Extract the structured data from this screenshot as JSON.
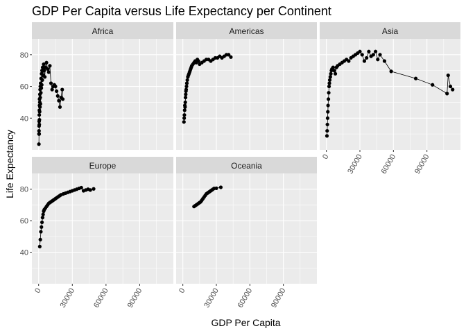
{
  "chart_data": {
    "type": "line",
    "title": "GDP Per Capita versus Life Expectancy per Continent",
    "xlabel": "GDP Per Capita",
    "ylabel": "Life Expectancy",
    "xlim": [
      -6000,
      120000
    ],
    "ylim": [
      20,
      90
    ],
    "x_ticks": [
      0,
      30000,
      60000,
      90000
    ],
    "x_tick_labels": [
      "0",
      "30000",
      "60000",
      "90000"
    ],
    "y_ticks": [
      40,
      60,
      80
    ],
    "y_tick_labels": [
      "40",
      "60",
      "80"
    ],
    "grid": true,
    "markers": "points",
    "panels": [
      {
        "name": "Africa",
        "points": [
          [
            241,
            23.6
          ],
          [
            300,
            30
          ],
          [
            350,
            32
          ],
          [
            400,
            35
          ],
          [
            450,
            38
          ],
          [
            500,
            30
          ],
          [
            550,
            42
          ],
          [
            600,
            36
          ],
          [
            650,
            45
          ],
          [
            700,
            39
          ],
          [
            750,
            48
          ],
          [
            800,
            52
          ],
          [
            900,
            44
          ],
          [
            1000,
            50
          ],
          [
            1100,
            55
          ],
          [
            1200,
            47
          ],
          [
            1300,
            58
          ],
          [
            1400,
            53
          ],
          [
            1500,
            60
          ],
          [
            1600,
            49
          ],
          [
            1800,
            62
          ],
          [
            2000,
            56
          ],
          [
            2200,
            65
          ],
          [
            2400,
            59
          ],
          [
            2600,
            68
          ],
          [
            2800,
            61
          ],
          [
            3000,
            70
          ],
          [
            3300,
            64
          ],
          [
            3600,
            72
          ],
          [
            4000,
            67
          ],
          [
            4500,
            74
          ],
          [
            5000,
            70
          ],
          [
            5500,
            66
          ],
          [
            6000,
            72
          ],
          [
            7000,
            75
          ],
          [
            8000,
            71
          ],
          [
            9000,
            69
          ],
          [
            10000,
            73
          ],
          [
            11000,
            62
          ],
          [
            12000,
            58
          ],
          [
            13000,
            60
          ],
          [
            14000,
            61
          ],
          [
            15000,
            60
          ],
          [
            16000,
            57
          ],
          [
            17000,
            54
          ],
          [
            18000,
            51
          ],
          [
            19000,
            47
          ],
          [
            20000,
            53
          ],
          [
            21000,
            58
          ],
          [
            21500,
            52
          ]
        ]
      },
      {
        "name": "Americas",
        "points": [
          [
            1000,
            37.6
          ],
          [
            1200,
            40
          ],
          [
            1400,
            42
          ],
          [
            1600,
            45
          ],
          [
            1800,
            48
          ],
          [
            2000,
            47
          ],
          [
            2200,
            50
          ],
          [
            2400,
            53
          ],
          [
            2600,
            55
          ],
          [
            2800,
            57
          ],
          [
            3000,
            58
          ],
          [
            3300,
            60
          ],
          [
            3600,
            62
          ],
          [
            4000,
            64
          ],
          [
            4500,
            66
          ],
          [
            5000,
            67
          ],
          [
            5500,
            68
          ],
          [
            6000,
            69
          ],
          [
            6500,
            70
          ],
          [
            7000,
            71
          ],
          [
            7500,
            72
          ],
          [
            8000,
            73
          ],
          [
            9000,
            74
          ],
          [
            10000,
            75
          ],
          [
            11000,
            76
          ],
          [
            12000,
            75
          ],
          [
            13000,
            77
          ],
          [
            14000,
            76
          ],
          [
            15000,
            74
          ],
          [
            17000,
            75
          ],
          [
            19000,
            76
          ],
          [
            21000,
            77
          ],
          [
            23000,
            77
          ],
          [
            25000,
            76
          ],
          [
            27000,
            77
          ],
          [
            29000,
            78
          ],
          [
            31000,
            78
          ],
          [
            33000,
            79
          ],
          [
            35000,
            78
          ],
          [
            37000,
            79
          ],
          [
            39000,
            80
          ],
          [
            41000,
            80
          ],
          [
            43000,
            78.5
          ]
        ]
      },
      {
        "name": "Asia",
        "points": [
          [
            500,
            28.8
          ],
          [
            700,
            32
          ],
          [
            900,
            36
          ],
          [
            1100,
            40
          ],
          [
            1300,
            44
          ],
          [
            1500,
            48
          ],
          [
            1800,
            52
          ],
          [
            2100,
            56
          ],
          [
            2400,
            60
          ],
          [
            2700,
            62
          ],
          [
            3000,
            64
          ],
          [
            3500,
            66
          ],
          [
            4000,
            68
          ],
          [
            4500,
            70
          ],
          [
            5000,
            71
          ],
          [
            6000,
            72
          ],
          [
            7000,
            70
          ],
          [
            8000,
            68
          ],
          [
            9000,
            72
          ],
          [
            10000,
            73
          ],
          [
            12000,
            74
          ],
          [
            14000,
            75
          ],
          [
            16000,
            76
          ],
          [
            18000,
            77
          ],
          [
            20000,
            76
          ],
          [
            22000,
            78
          ],
          [
            24000,
            79
          ],
          [
            26000,
            80
          ],
          [
            28000,
            81
          ],
          [
            30000,
            82
          ],
          [
            32000,
            80
          ],
          [
            34000,
            76
          ],
          [
            36000,
            78
          ],
          [
            38000,
            82
          ],
          [
            40000,
            79
          ],
          [
            42000,
            80
          ],
          [
            44000,
            82
          ],
          [
            46000,
            77
          ],
          [
            48000,
            80
          ],
          [
            52000,
            76
          ],
          [
            58000,
            69.5
          ],
          [
            80000,
            65
          ],
          [
            95000,
            61
          ],
          [
            108000,
            55.5
          ],
          [
            109000,
            67
          ],
          [
            111000,
            60
          ],
          [
            113000,
            58
          ]
        ]
      },
      {
        "name": "Europe",
        "points": [
          [
            1000,
            43.6
          ],
          [
            1500,
            48
          ],
          [
            2000,
            53
          ],
          [
            2500,
            56
          ],
          [
            3000,
            59
          ],
          [
            3500,
            62
          ],
          [
            4000,
            64
          ],
          [
            4500,
            66
          ],
          [
            5000,
            67
          ],
          [
            6000,
            68
          ],
          [
            7000,
            69
          ],
          [
            8000,
            70
          ],
          [
            9000,
            71
          ],
          [
            10000,
            71.5
          ],
          [
            11000,
            72
          ],
          [
            12000,
            72.5
          ],
          [
            13000,
            73
          ],
          [
            14000,
            73.5
          ],
          [
            15000,
            74
          ],
          [
            16000,
            74.5
          ],
          [
            17000,
            75
          ],
          [
            18000,
            75.5
          ],
          [
            19000,
            76
          ],
          [
            20000,
            76.5
          ],
          [
            22000,
            77
          ],
          [
            24000,
            77.5
          ],
          [
            26000,
            78
          ],
          [
            28000,
            78.5
          ],
          [
            30000,
            79
          ],
          [
            32000,
            79.5
          ],
          [
            34000,
            80
          ],
          [
            36000,
            80.5
          ],
          [
            38000,
            81
          ],
          [
            40000,
            79
          ],
          [
            42000,
            79.5
          ],
          [
            44000,
            80
          ],
          [
            46000,
            79.5
          ],
          [
            49000,
            80.2
          ]
        ]
      },
      {
        "name": "Oceania",
        "points": [
          [
            10000,
            69
          ],
          [
            11000,
            69.5
          ],
          [
            12000,
            70
          ],
          [
            13000,
            70.5
          ],
          [
            14000,
            71
          ],
          [
            15000,
            71.5
          ],
          [
            16000,
            72
          ],
          [
            17000,
            73
          ],
          [
            18000,
            74
          ],
          [
            19000,
            75
          ],
          [
            20000,
            76
          ],
          [
            21000,
            77
          ],
          [
            22000,
            77.5
          ],
          [
            23000,
            78
          ],
          [
            24000,
            78.5
          ],
          [
            25000,
            79
          ],
          [
            26000,
            79.5
          ],
          [
            27000,
            80
          ],
          [
            28000,
            80.5
          ],
          [
            30000,
            80.6
          ],
          [
            34000,
            81.2
          ]
        ]
      }
    ]
  }
}
